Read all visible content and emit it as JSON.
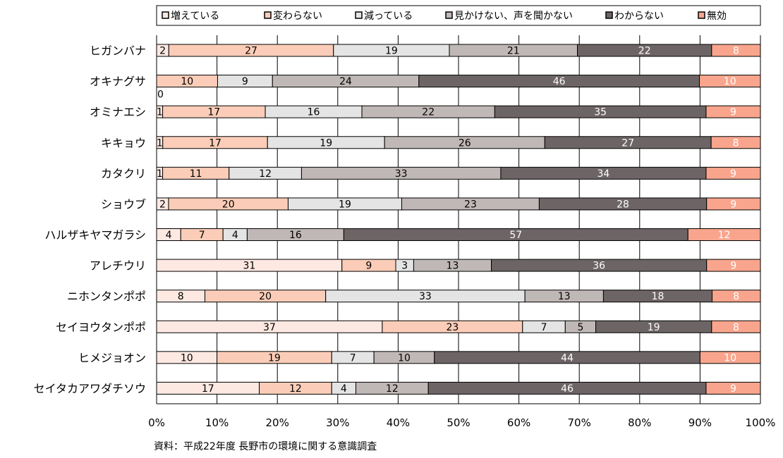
{
  "chart_data": {
    "type": "bar",
    "orientation": "horizontal",
    "stacked": "percent",
    "categories": [
      "ヒガンバナ",
      "オキナグサ",
      "オミナエシ",
      "キキョウ",
      "カタクリ",
      "ショウブ",
      "ハルザキヤマガラシ",
      "アレチウリ",
      "ニホンタンポポ",
      "セイヨウタンポポ",
      "ヒメジョオン",
      "セイタカアワダチソウ"
    ],
    "series": [
      {
        "name": "増えている",
        "color": "#fde9e2",
        "label_color": "#000000",
        "values": [
          2,
          0,
          1,
          1,
          1,
          2,
          4,
          31,
          8,
          37,
          10,
          17
        ]
      },
      {
        "name": "変わらない",
        "color": "#fbcdb8",
        "label_color": "#000000",
        "values": [
          27,
          10,
          17,
          17,
          11,
          20,
          7,
          9,
          20,
          23,
          19,
          12
        ]
      },
      {
        "name": "減っている",
        "color": "#e4e4e4",
        "label_color": "#000000",
        "values": [
          19,
          9,
          16,
          19,
          12,
          19,
          4,
          3,
          33,
          7,
          7,
          4
        ]
      },
      {
        "name": "見かけない、声を聞かない",
        "color": "#bfb8b6",
        "label_color": "#000000",
        "values": [
          21,
          24,
          22,
          26,
          33,
          23,
          16,
          13,
          13,
          5,
          10,
          12
        ]
      },
      {
        "name": "わからない",
        "color": "#6d6565",
        "label_color": "#ffffff",
        "values": [
          22,
          46,
          35,
          27,
          34,
          28,
          57,
          36,
          18,
          19,
          44,
          46
        ]
      },
      {
        "name": "無効",
        "color": "#f9a58d",
        "label_color": "#ffffff",
        "values": [
          8,
          10,
          9,
          8,
          9,
          9,
          12,
          9,
          8,
          8,
          10,
          9
        ]
      }
    ],
    "extra_labels": [
      {
        "category": "オキナグサ",
        "text": "0"
      }
    ],
    "x_ticks": [
      "0%",
      "10%",
      "20%",
      "30%",
      "40%",
      "50%",
      "60%",
      "70%",
      "80%",
      "90%",
      "100%"
    ],
    "xlim": [
      0,
      100
    ],
    "grid": true,
    "legend": {
      "position": "top"
    },
    "source": "資料：平成22年度 長野市の環境に関する意識調査"
  }
}
